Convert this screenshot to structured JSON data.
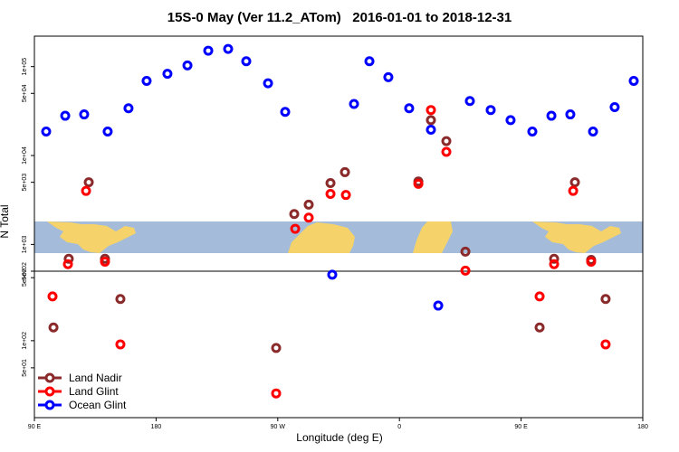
{
  "chart_data": {
    "type": "scatter",
    "title": "15S-0 May (Ver 11.2_ATom)   2016-01-01 to 2018-12-31",
    "xlabel": "Longitude (deg E)",
    "ylabel": "N Total",
    "log_y": true,
    "legend": "bottom-left",
    "xlim": [
      90,
      540
    ],
    "xticks": [
      {
        "value": 90,
        "label": "90 E"
      },
      {
        "value": 180,
        "label": "180"
      },
      {
        "value": 270,
        "label": "90 W"
      },
      {
        "value": 360,
        "label": "0"
      },
      {
        "value": 450,
        "label": "90 E"
      },
      {
        "value": 540,
        "label": "180"
      }
    ],
    "ylim": [
      500,
      220000
    ],
    "yticks": [
      {
        "value": 500,
        "label": "5e+02"
      },
      {
        "value": 1000,
        "label": "1e+03"
      },
      {
        "value": 5000,
        "label": "5e+03"
      },
      {
        "value": 10000,
        "label": "1e+04"
      },
      {
        "value": 50000,
        "label": "5e+04"
      },
      {
        "value": 100000,
        "label": "1e+05"
      }
    ],
    "ylim_lower": [
      14,
      590
    ],
    "yticks_lower": [
      {
        "value": 500,
        "label": "5e+02"
      },
      {
        "value": 100,
        "label": "1e+02"
      },
      {
        "value": 50,
        "label": "5e+01"
      }
    ],
    "series": [
      {
        "name": "Land Nadir",
        "color": "#8b2a2a",
        "x": [
          130.2,
          115.4,
          142.2,
          282.2,
          292.9,
          309,
          319.7,
          374,
          383.3,
          394.7,
          408.8,
          474.4,
          489.8,
          501.8
        ],
        "values": [
          5000,
          690,
          690,
          2200,
          2800,
          4900,
          6500,
          5100,
          25000,
          14500,
          830,
          690,
          5000,
          670
        ],
        "x_lower": [
          104.1,
          153.6,
          268.8,
          463.7,
          512.5
        ],
        "values_lower": [
          140,
          290,
          83,
          140,
          290
        ]
      },
      {
        "name": "Land Glint",
        "color": "#ff0000",
        "x": [
          128.2,
          114.8,
          142.2,
          282.9,
          292.9,
          309,
          320.4,
          374,
          383.3,
          394.7,
          408.8,
          474.4,
          488.5,
          501.8
        ],
        "values": [
          4000,
          600,
          640,
          1500,
          2000,
          3700,
          3600,
          4800,
          32500,
          11000,
          507,
          600,
          4000,
          640
        ],
        "x_lower": [
          103.4,
          153.6,
          268.8,
          463.7,
          512.5
        ],
        "values_lower": [
          310,
          91,
          26,
          310,
          91
        ]
      },
      {
        "name": "Ocean Glint",
        "color": "#0000ff",
        "x": [
          98.7,
          112.8,
          126.8,
          144.2,
          159.6,
          173,
          188.4,
          203.2,
          218.6,
          233.3,
          246.7,
          262.8,
          275.5,
          326.4,
          337.8,
          351.8,
          367.2,
          383.3,
          412.1,
          427.5,
          442.2,
          458.3,
          472.4,
          486.4,
          503.2,
          519.2,
          533.3
        ],
        "values": [
          18600,
          28000,
          29000,
          18600,
          34000,
          69000,
          83000,
          103000,
          151000,
          158000,
          115000,
          65000,
          31000,
          38000,
          115000,
          76000,
          34000,
          19500,
          41000,
          32500,
          25000,
          18600,
          28000,
          29000,
          18600,
          35000,
          69000
        ],
        "x_lower": [
          310.3,
          388.7
        ],
        "values_lower": [
          540,
          245
        ]
      }
    ]
  }
}
